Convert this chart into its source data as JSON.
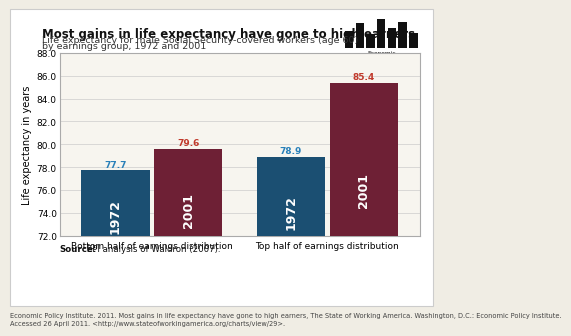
{
  "title": "Most gains in life expectancy have gone to high earners",
  "subtitle1": "Life expectancy for male Social Security-covered workers (age 60)",
  "subtitle2": "by earnings group, 1972 and 2001",
  "ylabel": "Life expectancy in years",
  "categories": [
    "Bottom half of earnings distribution",
    "Top half of earnings distribution"
  ],
  "years": [
    "1972",
    "2001"
  ],
  "values": [
    [
      77.7,
      79.6
    ],
    [
      78.9,
      85.4
    ]
  ],
  "bar_colors": [
    "#1b4f72",
    "#6e2035"
  ],
  "value_label_colors_1972": "#2980b9",
  "value_label_colors_2001": "#c0392b",
  "ylim": [
    72.0,
    88.0
  ],
  "yticks": [
    72.0,
    74.0,
    76.0,
    78.0,
    80.0,
    82.0,
    84.0,
    86.0,
    88.0
  ],
  "source_bold": "Source:",
  "source_rest": " EPI analysis of Waldron (2007).",
  "footer_line1": "Economic Policy Institute. 2011. Most gains in life expectancy have gone to high earners, The State of Working America. Washington, D.C.: Economic Policy Institute.",
  "footer_line2": "Accessed 26 April 2011. <http://www.stateofworkingamerica.org/charts/view/29>.",
  "outer_bg": "#f0ede4",
  "chart_bg": "#f7f5ef",
  "panel_border": "#aaaaaa",
  "logo_bars_x": [
    0.08,
    0.22,
    0.36,
    0.5,
    0.64,
    0.78,
    0.92
  ],
  "logo_bars_h": [
    0.55,
    0.8,
    0.45,
    0.95,
    0.65,
    0.85,
    0.5
  ]
}
